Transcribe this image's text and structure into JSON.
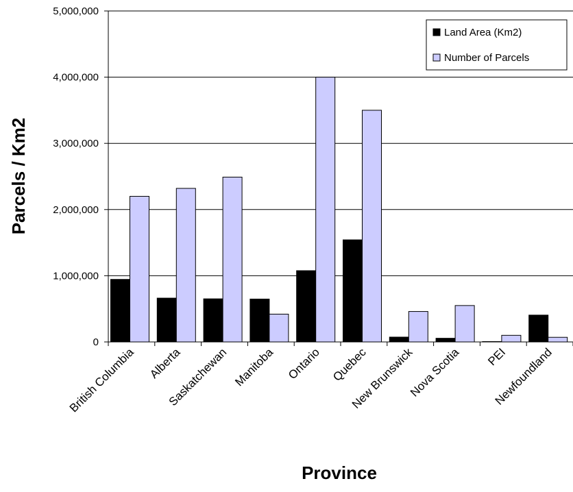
{
  "chart_data": {
    "type": "bar",
    "title": "",
    "xlabel": "Province",
    "ylabel": "Parcels / Km2",
    "ylim": [
      0,
      5000000
    ],
    "yticks": [
      0,
      1000000,
      2000000,
      3000000,
      4000000,
      5000000
    ],
    "ytick_labels": [
      "0",
      "1,000,000",
      "2,000,000",
      "3,000,000",
      "4,000,000",
      "5,000,000"
    ],
    "grid": true,
    "legend_position": "top-right",
    "categories": [
      "British Columbia",
      "Alberta",
      "Saskatchewan",
      "Manitoba",
      "Ontario",
      "Quebec",
      "New Brunswick",
      "Nova Scotia",
      "PEI",
      "Newfoundland"
    ],
    "series": [
      {
        "name": "Land Area (Km2)",
        "color": "#000000",
        "values": [
          944735,
          661848,
          651036,
          647797,
          1076395,
          1542056,
          72908,
          55284,
          5660,
          405212
        ]
      },
      {
        "name": "Number of Parcels",
        "color": "#ccccff",
        "values": [
          2200000,
          2320000,
          2490000,
          420000,
          4000000,
          3500000,
          460000,
          550000,
          100000,
          70000
        ]
      }
    ]
  }
}
